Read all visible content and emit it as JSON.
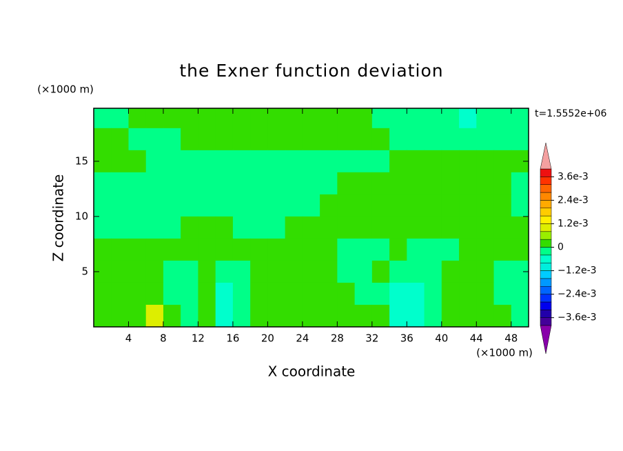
{
  "chart_data": {
    "type": "contour",
    "title": "the Exner function deviation",
    "xlabel": "X coordinate",
    "ylabel": "Z coordinate",
    "xunit": "(×1000 m)",
    "yunit": "(×1000 m)",
    "time_label": "t=1.5552e+06",
    "xlim": [
      0,
      50
    ],
    "ylim": [
      0,
      19.8
    ],
    "xticks": [
      4,
      8,
      12,
      16,
      20,
      24,
      28,
      32,
      36,
      40,
      44,
      48
    ],
    "yticks": [
      5,
      10,
      15
    ],
    "x": [
      1,
      3,
      5,
      7,
      9,
      11,
      13,
      15,
      17,
      19,
      21,
      23,
      25,
      27,
      29,
      31,
      33,
      35,
      37,
      39,
      41,
      43,
      45,
      47,
      49
    ],
    "y": [
      19,
      17,
      15,
      13,
      11,
      9,
      7,
      5,
      3,
      1
    ],
    "z": [
      [
        -0.0002,
        -0.0002,
        0.0002,
        0.0002,
        0.0002,
        0.0002,
        0.0002,
        0.0002,
        0.0002,
        0.0002,
        0.0002,
        0.0002,
        0.0002,
        0.0002,
        0.0002,
        0.0002,
        -0.0002,
        -0.0002,
        -0.0002,
        -0.0002,
        -0.0002,
        -0.0006,
        -0.0002,
        -0.0002,
        -0.0002
      ],
      [
        0.0002,
        0.0002,
        -0.0002,
        -0.0002,
        -0.0002,
        0.0002,
        0.0002,
        0.0002,
        0.0002,
        0.0002,
        0.0002,
        0.0002,
        0.0002,
        0.0002,
        0.0002,
        0.0002,
        0.0002,
        -0.0002,
        -0.0002,
        -0.0002,
        -0.0002,
        -0.0002,
        -0.0002,
        -0.0002,
        -0.0002
      ],
      [
        0.0002,
        0.0002,
        0.0002,
        -0.0002,
        -0.0002,
        -0.0002,
        -0.0002,
        -0.0002,
        -0.0002,
        -0.0002,
        -0.0002,
        -0.0002,
        -0.0002,
        -0.0002,
        -0.0002,
        -0.0002,
        -0.0002,
        0.0002,
        0.0002,
        0.0002,
        0.0002,
        0.0002,
        0.0002,
        0.0002,
        0.0002
      ],
      [
        -0.0002,
        -0.0002,
        -0.0002,
        -0.0002,
        -0.0002,
        -0.0002,
        -0.0002,
        -0.0002,
        -0.0002,
        -0.0002,
        -0.0002,
        -0.0002,
        -0.0002,
        -0.0002,
        0.0002,
        0.0002,
        0.0002,
        0.0002,
        0.0002,
        0.0002,
        0.0002,
        0.0002,
        0.0002,
        0.0002,
        -0.0002
      ],
      [
        -0.0002,
        -0.0002,
        -0.0002,
        -0.0002,
        -0.0002,
        -0.0002,
        -0.0002,
        -0.0002,
        -0.0002,
        -0.0002,
        -0.0002,
        -0.0002,
        -0.0002,
        0.0002,
        0.0002,
        0.0002,
        0.0002,
        0.0002,
        0.0002,
        0.0002,
        0.0002,
        0.0002,
        0.0002,
        0.0002,
        -0.0002
      ],
      [
        -0.0002,
        -0.0002,
        -0.0002,
        -0.0002,
        -0.0002,
        0.0002,
        0.0002,
        0.0002,
        -0.0002,
        -0.0002,
        -0.0002,
        0.0002,
        0.0002,
        0.0002,
        0.0002,
        0.0002,
        0.0002,
        0.0002,
        0.0002,
        0.0002,
        0.0002,
        0.0002,
        0.0002,
        0.0002,
        0.0002
      ],
      [
        0.0002,
        0.0002,
        0.0002,
        0.0002,
        0.0002,
        0.0002,
        0.0002,
        0.0002,
        0.0002,
        0.0002,
        0.0002,
        0.0002,
        0.0002,
        0.0002,
        -0.0002,
        -0.0002,
        -0.0002,
        0.0002,
        -0.0002,
        -0.0002,
        -0.0002,
        0.0002,
        0.0002,
        0.0002,
        0.0002
      ],
      [
        0.0002,
        0.0002,
        0.0002,
        0.0002,
        -0.0002,
        -0.0002,
        0.0002,
        -0.0002,
        -0.0002,
        0.0002,
        0.0002,
        0.0002,
        0.0002,
        0.0002,
        -0.0002,
        -0.0002,
        0.0002,
        -0.0002,
        -0.0002,
        -0.0002,
        0.0002,
        0.0002,
        0.0002,
        -0.0002,
        -0.0002
      ],
      [
        0.0002,
        0.0002,
        0.0002,
        0.0002,
        -0.0002,
        -0.0002,
        0.0002,
        -0.0006,
        -0.0002,
        0.0002,
        0.0002,
        0.0002,
        0.0002,
        0.0002,
        0.0002,
        -0.0002,
        -0.0002,
        -0.0006,
        -0.0006,
        -0.0002,
        0.0002,
        0.0002,
        0.0002,
        -0.0002,
        -0.0002
      ],
      [
        0.0002,
        0.0002,
        0.0002,
        0.001,
        0.0002,
        -0.0002,
        0.0002,
        -0.0006,
        -0.0002,
        0.0002,
        0.0002,
        0.0002,
        0.0002,
        0.0002,
        0.0002,
        0.0002,
        0.0002,
        -0.0006,
        -0.0006,
        -0.0002,
        0.0002,
        0.0002,
        0.0002,
        0.0002,
        -0.0002
      ]
    ],
    "levels": [
      -0.004,
      -0.0036,
      -0.0032,
      -0.0028,
      -0.0024,
      -0.002,
      -0.0016,
      -0.0012,
      -0.0008,
      -0.0004,
      0,
      0.0004,
      0.0008,
      0.0012,
      0.0016,
      0.002,
      0.0024,
      0.0028,
      0.0032,
      0.0036,
      0.004
    ],
    "colors": [
      "#440099",
      "#2200aa",
      "#0000ee",
      "#0033ff",
      "#0066ff",
      "#0099ff",
      "#00ccff",
      "#00eedd",
      "#00ffcc",
      "#00ff88",
      "#33dd00",
      "#99ee00",
      "#ddee00",
      "#ffee00",
      "#ffcc00",
      "#ffaa00",
      "#ff8800",
      "#ff6600",
      "#ff3300",
      "#ee1111"
    ],
    "under_color": "#8800aa",
    "over_color": "#f4a0a0",
    "cbticks": [
      {
        "value": 0.0036,
        "label": "3.6e-3"
      },
      {
        "value": 0.0024,
        "label": "2.4e-3"
      },
      {
        "value": 0.0012,
        "label": "1.2e-3"
      },
      0,
      {
        "value": -0.0012,
        "label": "−1.2e-3"
      },
      {
        "value": -0.0024,
        "label": "−2.4e-3"
      },
      {
        "value": -0.0036,
        "label": "−3.6e-3"
      }
    ]
  }
}
